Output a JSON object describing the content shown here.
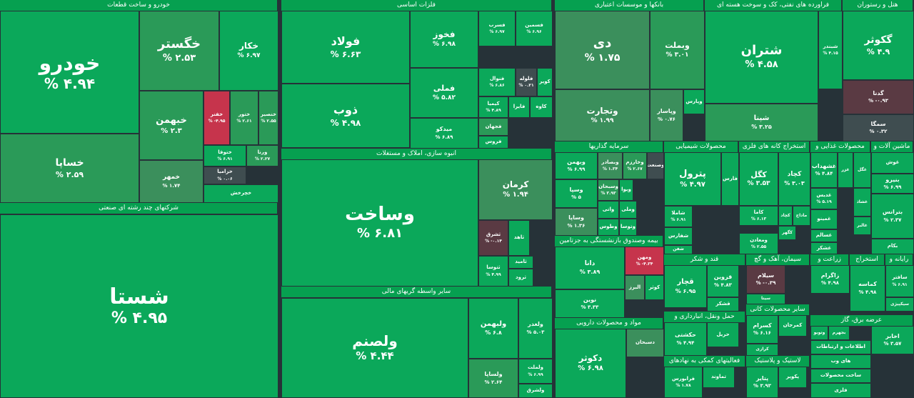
{
  "colors": {
    "up_strong": "#0ba85a",
    "up_mid": "#2a9a58",
    "up_light": "#3b8f5c",
    "neutral": "#3f4d50",
    "down": "#c6344c",
    "down_dark": "#5a3a43",
    "header": "#06a050",
    "bg": "#263238"
  },
  "sections": [
    {
      "id": "auto",
      "title": "خودرو و ساخت قطعات",
      "cells": [
        {
          "name": "خودرو",
          "value": "% ۴.۹۴",
          "tone": "up_strong"
        },
        {
          "name": "خگستر",
          "value": "% ۲.۵۳",
          "tone": "up_mid"
        },
        {
          "name": "خکار",
          "value": "% ۶.۹۷",
          "tone": "up_strong"
        },
        {
          "name": "خبهمن",
          "value": "% ۲.۳",
          "tone": "up_mid"
        },
        {
          "name": "خفنر",
          "value": "% -۴.۹۵",
          "tone": "down"
        },
        {
          "name": "ختور",
          "value": "% ۲.۶۱",
          "tone": "up_mid"
        },
        {
          "name": "خنصیر",
          "value": "% ۲.۵۵",
          "tone": "up_mid"
        },
        {
          "name": "خساپا",
          "value": "% ۲.۵۹",
          "tone": "up_mid"
        },
        {
          "name": "خمهر",
          "value": "% ۱.۷۴",
          "tone": "up_light"
        },
        {
          "name": "ختوقا",
          "value": "% ۶.۹۱",
          "tone": "up_strong"
        },
        {
          "name": "ورنا",
          "value": "% ۲.۲۷",
          "tone": "up_mid"
        },
        {
          "name": "خزامیا",
          "value": "% ۰.۰۶",
          "tone": "neutral"
        },
        {
          "name": "خچرخش",
          "value": "",
          "tone": "up_strong"
        }
      ]
    },
    {
      "id": "multi",
      "title": "شرکتهای چند رشته ای صنعتی",
      "cells": [
        {
          "name": "شستا",
          "value": "% ۴.۹۵",
          "tone": "up_strong"
        }
      ]
    },
    {
      "id": "metals",
      "title": "فلزات اساسی",
      "cells": [
        {
          "name": "فولاد",
          "value": "% ۶.۶۳",
          "tone": "up_strong"
        },
        {
          "name": "فخوز",
          "value": "% ۶.۹۸",
          "tone": "up_strong"
        },
        {
          "name": "فسرب",
          "value": "% ۶.۹۷",
          "tone": "up_strong"
        },
        {
          "name": "فسمین",
          "value": "% ۶.۹۶",
          "tone": "up_strong"
        },
        {
          "name": "ذوب",
          "value": "% ۴.۹۸",
          "tone": "up_strong"
        },
        {
          "name": "فملی",
          "value": "% ۵.۸۲",
          "tone": "up_strong"
        },
        {
          "name": "فنوال",
          "value": "% ۶.۸۶",
          "tone": "up_strong"
        },
        {
          "name": "فلوله",
          "value": "% ۰.۲۱",
          "tone": "neutral"
        },
        {
          "name": "کویر",
          "value": "",
          "tone": "up_strong"
        },
        {
          "name": "کیمیا",
          "value": "% ۴.۸۹",
          "tone": "up_strong"
        },
        {
          "name": "فایرا",
          "value": "",
          "tone": "up_strong"
        },
        {
          "name": "کاوه",
          "value": "",
          "tone": "up_strong"
        },
        {
          "name": "میدکو",
          "value": "% ۶.۸۹",
          "tone": "up_strong"
        },
        {
          "name": "فجهان",
          "value": "",
          "tone": "up_mid"
        },
        {
          "name": "فروس",
          "value": "",
          "tone": "up_strong"
        }
      ]
    },
    {
      "id": "build",
      "title": "انبوه سازی، املاک و مستغلات",
      "cells": [
        {
          "name": "وساخت",
          "value": "% ۶.۸۱",
          "tone": "up_strong"
        },
        {
          "name": "کرمان",
          "value": "% ۱.۹۴",
          "tone": "up_light"
        },
        {
          "name": "ثشرق",
          "value": "% -۰.۱۴",
          "tone": "down_dark"
        },
        {
          "name": "ثاهد",
          "value": "",
          "tone": "up_strong"
        },
        {
          "name": "ثامید",
          "value": "",
          "tone": "up_strong"
        },
        {
          "name": "ثتوسا",
          "value": "% ۴.۹۹",
          "tone": "up_strong"
        },
        {
          "name": "ثرود",
          "value": "",
          "tone": "up_strong"
        }
      ]
    },
    {
      "id": "financial",
      "title": "سایر واسطه گریهای مالی",
      "cells": [
        {
          "name": "ولصنم",
          "value": "% ۴.۴۴",
          "tone": "up_strong"
        },
        {
          "name": "ولبهمن",
          "value": "% ۶.۸",
          "tone": "up_strong"
        },
        {
          "name": "ولغدر",
          "value": "% ۵.۰۳",
          "tone": "up_strong"
        },
        {
          "name": "ولساپا",
          "value": "% ۲.۶۴",
          "tone": "up_mid"
        },
        {
          "name": "ولملت",
          "value": "% ۶.۹۹",
          "tone": "up_strong"
        },
        {
          "name": "ولشرق",
          "value": "",
          "tone": "up_strong"
        }
      ]
    },
    {
      "id": "banks",
      "title": "بانکها و موسسات اعتباری",
      "cells": [
        {
          "name": "دی",
          "value": "% ۱.۷۵",
          "tone": "up_light"
        },
        {
          "name": "وبملت",
          "value": "% ۳.۰۱",
          "tone": "up_mid"
        },
        {
          "name": "وتجارت",
          "value": "% ۱.۹۹",
          "tone": "up_light"
        },
        {
          "name": "وپاسار",
          "value": "% ۰.۷۶",
          "tone": "up_light"
        },
        {
          "name": "وپارس",
          "value": "",
          "tone": "up_strong"
        }
      ]
    },
    {
      "id": "oil",
      "title": "فراورده های نفتی، کک و سوخت هسته ای",
      "cells": [
        {
          "name": "شتران",
          "value": "% ۴.۵۸",
          "tone": "up_strong"
        },
        {
          "name": "شبندر",
          "value": "% ۴.۱۵",
          "tone": "up_strong"
        },
        {
          "name": "شپنا",
          "value": "% ۳.۲۵",
          "tone": "up_mid"
        }
      ]
    },
    {
      "id": "hotel",
      "title": "هتل و رستوران",
      "cells": [
        {
          "name": "گکوثر",
          "value": "% ۴.۹",
          "tone": "up_strong"
        },
        {
          "name": "گدنا",
          "value": "% -۰.۹۳",
          "tone": "down_dark"
        },
        {
          "name": "سمگا",
          "value": "% ۰.۳۲",
          "tone": "neutral"
        }
      ]
    },
    {
      "id": "invest",
      "title": "سرمایه گذاریها",
      "cells": [
        {
          "name": "وبهمن",
          "value": "% ۶.۹۹",
          "tone": "up_strong"
        },
        {
          "name": "وبصادر",
          "value": "% ۱.۳۴",
          "tone": "up_light"
        },
        {
          "name": "وخارزم",
          "value": "% ۲.۶۷",
          "tone": "up_mid"
        },
        {
          "name": "وصنعت",
          "value": "",
          "tone": "neutral"
        },
        {
          "name": "وسپا",
          "value": "% ۵",
          "tone": "up_strong"
        },
        {
          "name": "وسبحان",
          "value": "% ۳.۹۳",
          "tone": "up_mid"
        },
        {
          "name": "ویوا",
          "value": "",
          "tone": "up_strong"
        },
        {
          "name": "وساپا",
          "value": "% ۱.۳۶",
          "tone": "up_light"
        },
        {
          "name": "واتی",
          "value": "",
          "tone": "up_strong"
        },
        {
          "name": "وملی",
          "value": "",
          "tone": "up_strong"
        },
        {
          "name": "وطوس",
          "value": "",
          "tone": "up_strong"
        },
        {
          "name": "وتوسا",
          "value": "",
          "tone": "up_strong"
        }
      ]
    },
    {
      "id": "insurance",
      "title": "بیمه وصندوق بازنشستگی به جزتامین",
      "cells": [
        {
          "name": "دانا",
          "value": "% ۳.۸۹",
          "tone": "up_strong"
        },
        {
          "name": "ومهن",
          "value": "% -۴.۳۴",
          "tone": "down"
        },
        {
          "name": "کوثر",
          "value": "",
          "tone": "up_strong"
        },
        {
          "name": "البرز",
          "value": "",
          "tone": "up_light"
        },
        {
          "name": "نوین",
          "value": "% ۳.۳۳",
          "tone": "up_strong"
        }
      ]
    },
    {
      "id": "pharma",
      "title": "مواد و محصولات دارویی",
      "cells": [
        {
          "name": "دکوثر",
          "value": "% ۶.۹۸",
          "tone": "up_strong"
        },
        {
          "name": "دسبحان",
          "value": "",
          "tone": "up_light"
        }
      ]
    },
    {
      "id": "chem",
      "title": "محصولات شیمیایی",
      "cells": [
        {
          "name": "پترول",
          "value": "% ۴.۹۷",
          "tone": "up_strong"
        },
        {
          "name": "فارس",
          "value": "",
          "tone": "up_strong"
        },
        {
          "name": "شاملا",
          "value": "% ۶.۹۱",
          "tone": "up_strong"
        },
        {
          "name": "شفارس",
          "value": "",
          "tone": "up_strong"
        },
        {
          "name": "شفن",
          "value": "",
          "tone": "up_strong"
        }
      ]
    },
    {
      "id": "nonmetal_mine",
      "title": "استخراج کانه های فلزی",
      "cells": [
        {
          "name": "کگل",
          "value": "% ۳.۵۳",
          "tone": "up_strong"
        },
        {
          "name": "کچاد",
          "value": "% ۳.۰۳",
          "tone": "up_strong"
        },
        {
          "name": "کاما",
          "value": "% ۶.۱۳",
          "tone": "up_strong"
        },
        {
          "name": "کچاد",
          "value": "",
          "tone": "up_strong"
        },
        {
          "name": "کگهر",
          "value": "",
          "tone": "up_strong"
        },
        {
          "name": "ومعادن",
          "value": "% ۲.۵۵",
          "tone": "up_strong"
        },
        {
          "name": "ماداج",
          "value": "",
          "tone": "up_strong"
        }
      ]
    },
    {
      "id": "food",
      "title": "محصولات غذایی و",
      "cells": [
        {
          "name": "غشهداب",
          "value": "% ۴.۸۴",
          "tone": "up_strong"
        },
        {
          "name": "غزر",
          "value": "",
          "tone": "up_strong"
        },
        {
          "name": "غدیس",
          "value": "% ۵.۱۹",
          "tone": "up_strong"
        },
        {
          "name": "غمینو",
          "value": "",
          "tone": "up_strong"
        },
        {
          "name": "غسالم",
          "value": "",
          "tone": "up_strong"
        },
        {
          "name": "غشکر",
          "value": "",
          "tone": "up_strong"
        },
        {
          "name": "غشاذ",
          "value": "",
          "tone": "up_strong"
        }
      ]
    },
    {
      "id": "machinery",
      "title": "ماشین آلات و",
      "cells": [
        {
          "name": "غوش",
          "value": "",
          "tone": "up_strong"
        },
        {
          "name": "بنیرو",
          "value": "% ۶.۹۹",
          "tone": "up_strong"
        },
        {
          "name": "غگل",
          "value": "",
          "tone": "up_strong"
        },
        {
          "name": "غالبر",
          "value": "",
          "tone": "up_strong"
        },
        {
          "name": "بترانس",
          "value": "% ۲.۳۷",
          "tone": "up_strong"
        },
        {
          "name": "بکام",
          "value": "",
          "tone": "up_strong"
        }
      ]
    },
    {
      "id": "sugar",
      "title": "قند و شکر",
      "cells": [
        {
          "name": "قچار",
          "value": "% ۶.۹۵",
          "tone": "up_strong"
        },
        {
          "name": "قزوین",
          "value": "% ۴.۸۳",
          "tone": "up_strong"
        },
        {
          "name": "قشکر",
          "value": "",
          "tone": "up_strong"
        }
      ]
    },
    {
      "id": "cement",
      "title": "سیمان، آهک و گچ",
      "cells": [
        {
          "name": "سیلام",
          "value": "% -۰.۳۹",
          "tone": "down_dark"
        },
        {
          "name": "سیتا",
          "value": "",
          "tone": "up_strong"
        }
      ]
    },
    {
      "id": "agri",
      "title": "زراعت و",
      "cells": [
        {
          "name": "زاگرام",
          "value": "% ۴.۹۸",
          "tone": "up_strong"
        }
      ]
    },
    {
      "id": "radio",
      "title": "رایانه و",
      "cells": [
        {
          "name": "سافتر",
          "value": "% ۶.۹۱",
          "tone": "up_strong"
        },
        {
          "name": "سیکپیژی",
          "value": "",
          "tone": "up_strong"
        }
      ]
    },
    {
      "id": "transport",
      "title": "حمل ونقل، انبارداری و",
      "cells": [
        {
          "name": "حکشتی",
          "value": "% ۴.۹۴",
          "tone": "up_strong"
        },
        {
          "name": "حریل",
          "value": "",
          "tone": "up_strong"
        }
      ]
    },
    {
      "id": "othermineral",
      "title": "سایر محصولات کانی",
      "cells": [
        {
          "name": "کسرام",
          "value": "% ۶.۱۶",
          "tone": "up_strong"
        },
        {
          "name": "کمرجان",
          "value": "",
          "tone": "up_strong"
        },
        {
          "name": "کرازی",
          "value": "",
          "tone": "up_strong"
        }
      ]
    },
    {
      "id": "extract",
      "title": "استخراج",
      "cells": [
        {
          "name": "کماسه",
          "value": "% ۴.۹۸",
          "tone": "up_strong"
        }
      ]
    },
    {
      "id": "aux",
      "title": "فعالیتهای کمکی به نهادهای",
      "cells": [
        {
          "name": "تماوند",
          "value": "",
          "tone": "up_strong"
        },
        {
          "name": "فرابورس",
          "value": "% ۱.۷۸",
          "tone": "up_strong"
        }
      ]
    },
    {
      "id": "rubber",
      "title": "لاستیک و پلاستیک",
      "cells": [
        {
          "name": "پتایر",
          "value": "% ۳.۹۳",
          "tone": "up_strong"
        },
        {
          "name": "پکویر",
          "value": "",
          "tone": "up_strong"
        }
      ]
    },
    {
      "id": "power",
      "title": "عرضه برق، گاز",
      "cells": [
        {
          "name": "بجهرم",
          "value": "",
          "tone": "up_strong"
        },
        {
          "name": "وتوبو",
          "value": "",
          "tone": "up_strong"
        },
        {
          "name": "اطلاعات و ارتباطات",
          "value": "",
          "tone": "up_strong"
        },
        {
          "name": "های وب",
          "value": "",
          "tone": "up_strong"
        },
        {
          "name": "اخابر",
          "value": "% ۳.۵۷",
          "tone": "up_strong"
        },
        {
          "name": "ساخت محصولات",
          "value": "",
          "tone": "up_strong"
        },
        {
          "name": "فلزی",
          "value": "",
          "tone": "up_strong"
        }
      ]
    }
  ]
}
